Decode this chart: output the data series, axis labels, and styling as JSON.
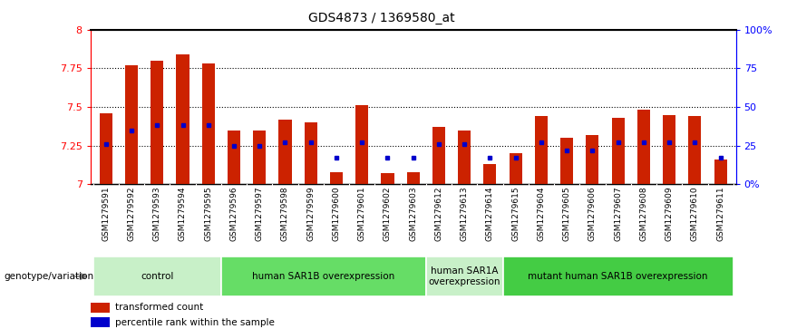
{
  "title": "GDS4873 / 1369580_at",
  "samples": [
    "GSM1279591",
    "GSM1279592",
    "GSM1279593",
    "GSM1279594",
    "GSM1279595",
    "GSM1279596",
    "GSM1279597",
    "GSM1279598",
    "GSM1279599",
    "GSM1279600",
    "GSM1279601",
    "GSM1279602",
    "GSM1279603",
    "GSM1279612",
    "GSM1279613",
    "GSM1279614",
    "GSM1279615",
    "GSM1279604",
    "GSM1279605",
    "GSM1279606",
    "GSM1279607",
    "GSM1279608",
    "GSM1279609",
    "GSM1279610",
    "GSM1279611"
  ],
  "transformed_count": [
    7.46,
    7.77,
    7.8,
    7.84,
    7.78,
    7.35,
    7.35,
    7.42,
    7.4,
    7.08,
    7.51,
    7.07,
    7.08,
    7.37,
    7.35,
    7.13,
    7.2,
    7.44,
    7.3,
    7.32,
    7.43,
    7.48,
    7.45,
    7.44,
    7.16
  ],
  "percentile_rank": [
    26,
    35,
    38,
    38,
    38,
    25,
    25,
    27,
    27,
    17,
    27,
    17,
    17,
    26,
    26,
    17,
    17,
    27,
    22,
    22,
    27,
    27,
    27,
    27,
    17
  ],
  "groups": [
    {
      "label": "control",
      "start": 0,
      "end": 5,
      "color": "#c8f0c8"
    },
    {
      "label": "human SAR1B overexpression",
      "start": 5,
      "end": 13,
      "color": "#66dd66"
    },
    {
      "label": "human SAR1A\noverexpression",
      "start": 13,
      "end": 16,
      "color": "#c8f0c8"
    },
    {
      "label": "mutant human SAR1B overexpression",
      "start": 16,
      "end": 25,
      "color": "#44cc44"
    }
  ],
  "ymin": 7.0,
  "ymax": 8.0,
  "yticks_left": [
    7.0,
    7.25,
    7.5,
    7.75,
    8.0
  ],
  "yticks_left_labels": [
    "7",
    "7.25",
    "7.5",
    "7.75",
    "8"
  ],
  "yticks_right": [
    0,
    25,
    50,
    75,
    100
  ],
  "yticks_right_labels": [
    "0%",
    "25",
    "50",
    "75",
    "100%"
  ],
  "hlines": [
    7.25,
    7.5,
    7.75
  ],
  "bar_color": "#cc2200",
  "dot_color": "#0000cc",
  "bar_width": 0.5,
  "legend_items": [
    {
      "color": "#cc2200",
      "label": "transformed count"
    },
    {
      "color": "#0000cc",
      "label": "percentile rank within the sample"
    }
  ],
  "genotype_label": "genotype/variation",
  "tick_fontsize": 6.5
}
